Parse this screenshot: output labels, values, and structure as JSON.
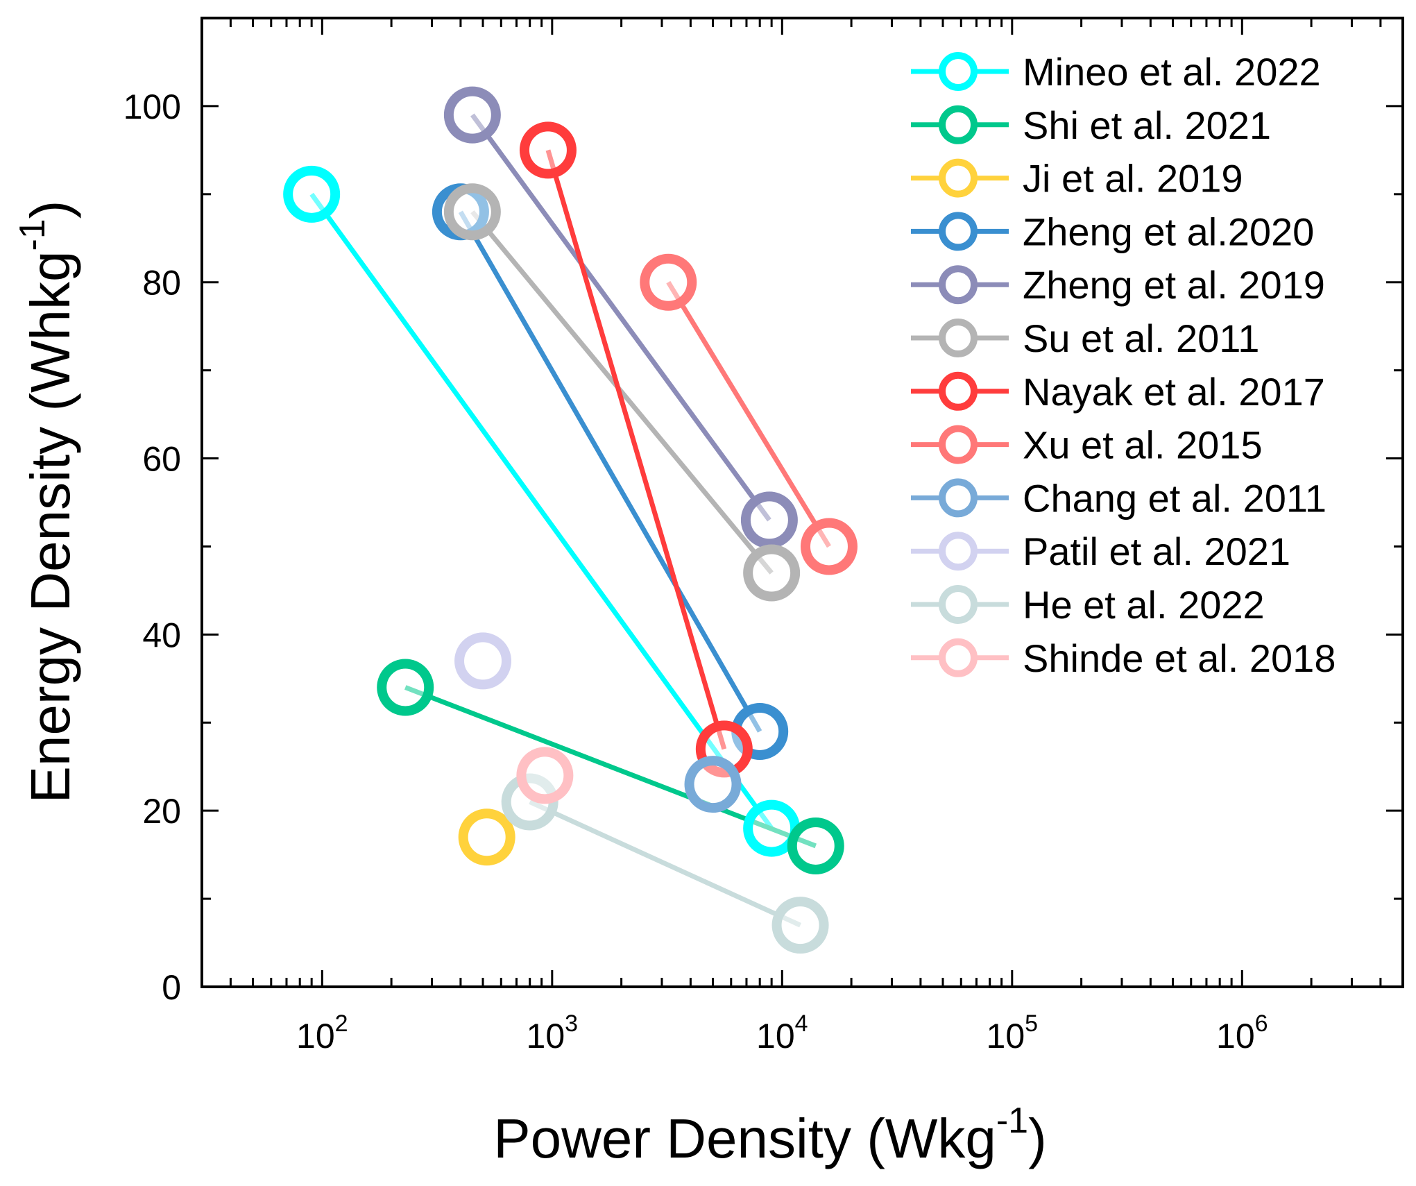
{
  "chart_data": {
    "type": "scatter",
    "xlabel": "Power Density (Wkg-1)",
    "xlabel_main": "Power Density (Wkg",
    "xlabel_sup": "-1",
    "xlabel_end": ")",
    "ylabel": "Energy Density (Whkg-1)",
    "ylabel_main": "Energy Density (Whkg",
    "ylabel_sup": "-1",
    "ylabel_end": ")",
    "xscale": "log",
    "xlim": [
      30,
      5000000
    ],
    "ylim": [
      0,
      110
    ],
    "y_ticks": [
      0,
      20,
      40,
      60,
      80,
      100
    ],
    "y_tick_labels": [
      "0",
      "20",
      "40",
      "60",
      "80",
      "100"
    ],
    "x_ticks": [
      100,
      1000,
      10000,
      100000,
      1000000
    ],
    "x_tick_base": [
      "10",
      "10",
      "10",
      "10",
      "10"
    ],
    "x_tick_exp": [
      "2",
      "3",
      "4",
      "5",
      "6"
    ],
    "legend_position": "top-right",
    "grid": false,
    "series": [
      {
        "name": "Mineo et al. 2022",
        "color": "#00FFFF",
        "x": [
          90,
          9000
        ],
        "y": [
          90,
          18
        ]
      },
      {
        "name": "Shi et al. 2021",
        "color": "#00C88C",
        "x": [
          230,
          14000
        ],
        "y": [
          34,
          16
        ]
      },
      {
        "name": "Ji et al. 2019",
        "color": "#FFD23C",
        "x": [
          520
        ],
        "y": [
          17
        ]
      },
      {
        "name": "Zheng et al.2020",
        "color": "#3A8FD0",
        "x": [
          400,
          8000
        ],
        "y": [
          88,
          29
        ]
      },
      {
        "name": "Zheng et al. 2019",
        "color": "#8C8CB8",
        "x": [
          450,
          8800
        ],
        "y": [
          99,
          53
        ]
      },
      {
        "name": "Su et al. 2011",
        "color": "#B4B4B4",
        "x": [
          450,
          9000
        ],
        "y": [
          88,
          47
        ]
      },
      {
        "name": "Nayak et al. 2017",
        "color": "#FF3C3C",
        "x": [
          960,
          5600
        ],
        "y": [
          95,
          27
        ]
      },
      {
        "name": "Xu et al. 2015",
        "color": "#FF7878",
        "x": [
          3200,
          16000
        ],
        "y": [
          80,
          50
        ]
      },
      {
        "name": "Chang et al. 2011",
        "color": "#78AAD8",
        "x": [
          5000
        ],
        "y": [
          23
        ]
      },
      {
        "name": "Patil et al. 2021",
        "color": "#D2D2F0",
        "x": [
          500
        ],
        "y": [
          37
        ]
      },
      {
        "name": "He et al. 2022",
        "color": "#C8DCDC",
        "x": [
          800,
          12000
        ],
        "y": [
          21,
          7
        ]
      },
      {
        "name": "Shinde et al. 2018",
        "color": "#FFC0C4",
        "x": [
          930
        ],
        "y": [
          24
        ]
      }
    ]
  }
}
